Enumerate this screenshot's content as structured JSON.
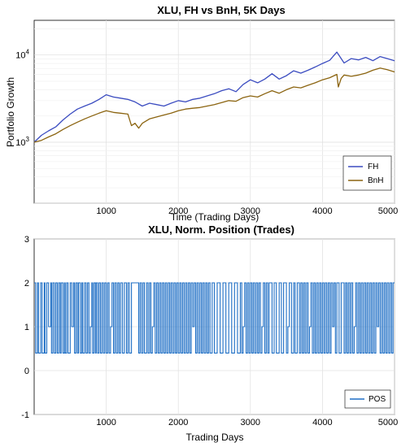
{
  "chart_data": [
    {
      "type": "line",
      "title": "XLU, FH vs BnH, 5K Days",
      "xlabel": "Time (Trading Days)",
      "ylabel": "Portfolio Growth",
      "yscale": "log",
      "xlim": [
        0,
        5000
      ],
      "ylim": [
        200,
        25000
      ],
      "x_ticks": [
        1000,
        2000,
        3000,
        4000,
        5000
      ],
      "y_ticks": [
        {
          "value": 1000,
          "label_base": "10",
          "label_exp": "3"
        },
        {
          "value": 10000,
          "label_base": "10",
          "label_exp": "4"
        }
      ],
      "grid": true,
      "legend_position": "bottom-right",
      "series": [
        {
          "name": "FH",
          "color": "#3b4cc0",
          "x": [
            0,
            100,
            200,
            300,
            400,
            500,
            600,
            700,
            800,
            900,
            1000,
            1100,
            1200,
            1300,
            1400,
            1500,
            1600,
            1700,
            1800,
            1900,
            2000,
            2100,
            2200,
            2300,
            2400,
            2500,
            2600,
            2700,
            2800,
            2900,
            3000,
            3100,
            3200,
            3300,
            3400,
            3500,
            3600,
            3700,
            3800,
            3900,
            4000,
            4100,
            4200,
            4300,
            4400,
            4500,
            4600,
            4700,
            4800,
            4900,
            5000
          ],
          "y": [
            1000,
            1200,
            1350,
            1500,
            1800,
            2100,
            2400,
            2600,
            2800,
            3100,
            3500,
            3300,
            3200,
            3100,
            2900,
            2600,
            2800,
            2700,
            2600,
            2800,
            3000,
            2900,
            3100,
            3200,
            3400,
            3600,
            3900,
            4100,
            3800,
            4600,
            5200,
            4800,
            5300,
            6100,
            5300,
            5800,
            6600,
            6200,
            6700,
            7300,
            8000,
            8700,
            10800,
            8100,
            9100,
            8800,
            9400,
            8600,
            9600,
            9100,
            8600
          ]
        },
        {
          "name": "BnH",
          "color": "#8b6410",
          "x": [
            0,
            100,
            200,
            300,
            400,
            500,
            600,
            700,
            800,
            900,
            1000,
            1100,
            1200,
            1300,
            1350,
            1400,
            1450,
            1500,
            1600,
            1700,
            1800,
            1900,
            2000,
            2100,
            2200,
            2300,
            2400,
            2500,
            2600,
            2700,
            2800,
            2900,
            3000,
            3100,
            3200,
            3300,
            3400,
            3500,
            3600,
            3700,
            3800,
            3900,
            4000,
            4100,
            4200,
            4220,
            4260,
            4300,
            4400,
            4500,
            4600,
            4700,
            4800,
            4900,
            5000
          ],
          "y": [
            1000,
            1050,
            1150,
            1250,
            1400,
            1550,
            1700,
            1850,
            2000,
            2150,
            2300,
            2200,
            2150,
            2100,
            1550,
            1650,
            1450,
            1650,
            1850,
            1950,
            2050,
            2150,
            2300,
            2400,
            2450,
            2500,
            2600,
            2700,
            2850,
            3000,
            2950,
            3250,
            3400,
            3300,
            3600,
            3900,
            3650,
            4000,
            4300,
            4200,
            4500,
            4800,
            5200,
            5500,
            6000,
            4300,
            5400,
            5900,
            5700,
            5900,
            6200,
            6700,
            7100,
            6800,
            6400
          ]
        }
      ]
    },
    {
      "type": "line",
      "title": "XLU, Norm. Position (Trades)",
      "xlabel": "Trading Days",
      "ylabel": "",
      "xlim": [
        0,
        5000
      ],
      "ylim": [
        -1,
        3
      ],
      "x_ticks": [
        1000,
        2000,
        3000,
        4000,
        5000
      ],
      "y_ticks": [
        -1,
        0,
        1,
        2,
        3
      ],
      "grid": true,
      "legend_position": "bottom-right",
      "series": [
        {
          "name": "POS",
          "color": "#1f6fc5",
          "levels": [
            2,
            0.4
          ],
          "switch_days": [
            20,
            45,
            60,
            90,
            110,
            140,
            150,
            175,
            200,
            230,
            240,
            260,
            280,
            300,
            320,
            340,
            360,
            375,
            400,
            420,
            430,
            450,
            470,
            500,
            520,
            545,
            560,
            580,
            600,
            615,
            640,
            660,
            675,
            700,
            720,
            740,
            760,
            780,
            800,
            810,
            830,
            850,
            860,
            880,
            900,
            920,
            940,
            960,
            980,
            1000,
            1020,
            1040,
            1060,
            1080,
            1100,
            1120,
            1140,
            1160,
            1180,
            1200,
            1225,
            1250,
            1280,
            1300,
            1320,
            1350,
            1450,
            1470,
            1490,
            1510,
            1530,
            1560,
            1580,
            1600,
            1620,
            1640,
            1660,
            1680,
            1700,
            1720,
            1740,
            1760,
            1780,
            1800,
            1820,
            1840,
            1860,
            1880,
            1900,
            1920,
            1940,
            1960,
            1980,
            2000,
            2020,
            2040,
            2060,
            2080,
            2100,
            2120,
            2140,
            2160,
            2180,
            2200,
            2220,
            2240,
            2260,
            2280,
            2300,
            2320,
            2340,
            2360,
            2380,
            2400,
            2420,
            2440,
            2470,
            2500,
            2540,
            2580,
            2620,
            2660,
            2700,
            2740,
            2780,
            2820,
            2860,
            2880,
            2900,
            2920,
            2940,
            2960,
            2980,
            3000,
            3020,
            3040,
            3060,
            3080,
            3100,
            3120,
            3140,
            3160,
            3180,
            3200,
            3220,
            3240,
            3260,
            3300,
            3330,
            3360,
            3400,
            3430,
            3460,
            3500,
            3520,
            3540,
            3570,
            3600,
            3620,
            3650,
            3680,
            3700,
            3720,
            3740,
            3760,
            3780,
            3800,
            3820,
            3840,
            3860,
            3880,
            3900,
            3920,
            3940,
            3960,
            3980,
            4000,
            4020,
            4040,
            4060,
            4080,
            4100,
            4120,
            4140,
            4160,
            4180,
            4200,
            4230,
            4260,
            4300,
            4320,
            4340,
            4360,
            4380,
            4400,
            4420,
            4440,
            4460,
            4480,
            4500,
            4520,
            4540,
            4560,
            4580,
            4600,
            4620,
            4640,
            4660,
            4680,
            4700,
            4720,
            4740,
            4760,
            4780,
            4800,
            4820,
            4840,
            4860,
            4880,
            4900,
            4920,
            4940,
            4960,
            4980
          ],
          "ones_days": [
            200,
            520,
            780,
            1060,
            1500,
            1640,
            2200,
            2480,
            2900,
            3160,
            3520,
            3820,
            4140,
            4440,
            4760
          ]
        }
      ]
    }
  ]
}
